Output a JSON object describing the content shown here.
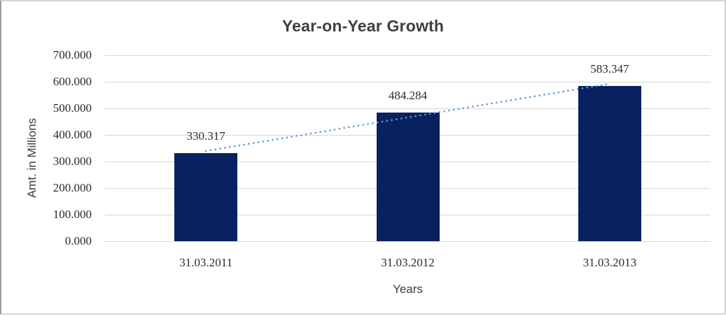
{
  "chart_data": {
    "type": "bar",
    "title": "Year-on-Year Growth",
    "categories": [
      "31.03.2011",
      "31.03.2012",
      "31.03.2013"
    ],
    "values": [
      330.317,
      484.284,
      583.347
    ],
    "value_labels": [
      "330.317",
      "484.284",
      "583.347"
    ],
    "xlabel": "Years",
    "ylabel": "Amt. in Millions",
    "ylim": [
      0,
      700
    ],
    "ytick_step": 100,
    "ytick_labels": [
      "0.000",
      "100.000",
      "200.000",
      "300.000",
      "400.000",
      "500.000",
      "600.000",
      "700.000"
    ],
    "grid": true,
    "legend": "none",
    "trendline": {
      "type": "linear",
      "style": "dotted"
    }
  },
  "colors": {
    "bar": "#0a2161",
    "trendline": "#5b9bd5",
    "gridline": "#d6d6d6",
    "title_text": "#3f3f3f",
    "axis_text": "#2b2b2b",
    "border": "#cfcfcf"
  }
}
